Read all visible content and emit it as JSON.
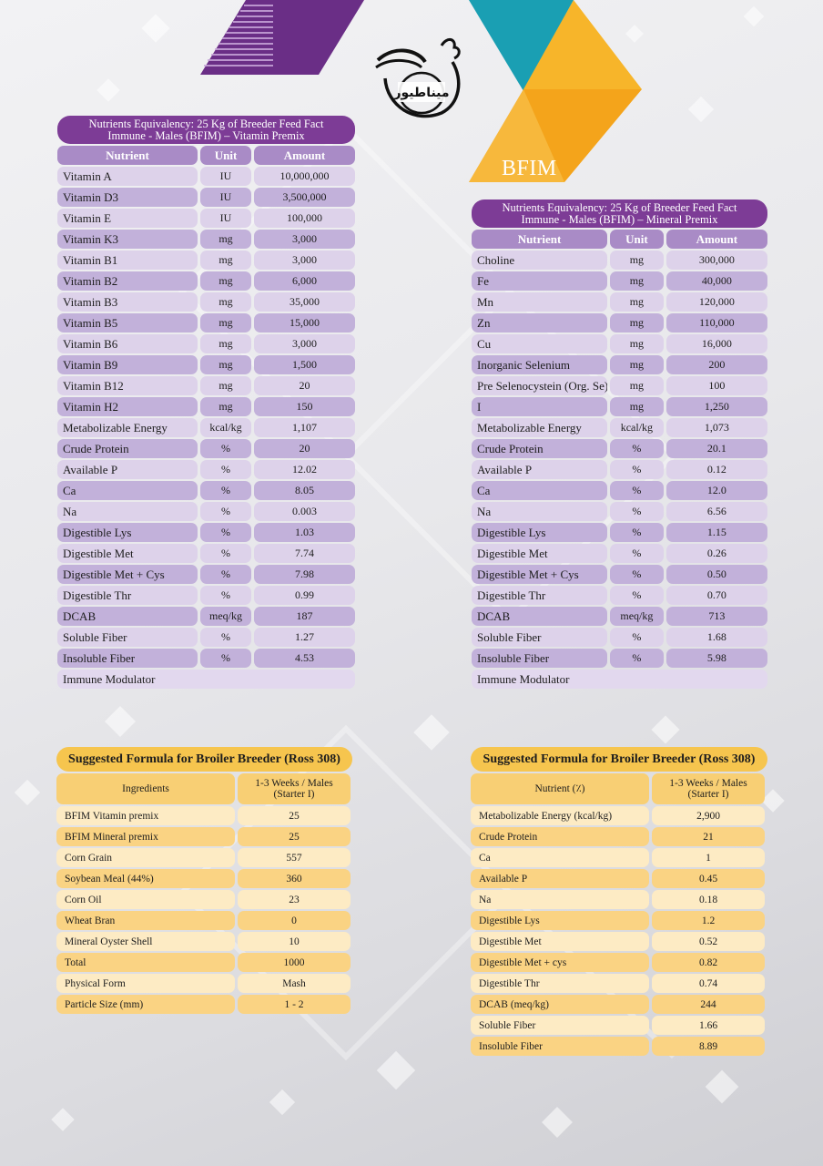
{
  "brand": {
    "label": "BFIM",
    "logo_text": "میناطیور"
  },
  "vitamin_premix": {
    "title_line1": "Nutrients Equivalency: 25 Kg of Breeder Feed Fact",
    "title_line2": "Immune - Males (BFIM) – Vitamin Premix",
    "headers": [
      "Nutrient",
      "Unit",
      "Amount"
    ],
    "rows": [
      [
        "Vitamin A",
        "IU",
        "10,000,000"
      ],
      [
        "Vitamin D3",
        "IU",
        "3,500,000"
      ],
      [
        "Vitamin E",
        "IU",
        "100,000"
      ],
      [
        "Vitamin K3",
        "mg",
        "3,000"
      ],
      [
        "Vitamin B1",
        "mg",
        "3,000"
      ],
      [
        "Vitamin B2",
        "mg",
        "6,000"
      ],
      [
        "Vitamin B3",
        "mg",
        "35,000"
      ],
      [
        "Vitamin B5",
        "mg",
        "15,000"
      ],
      [
        "Vitamin B6",
        "mg",
        "3,000"
      ],
      [
        "Vitamin B9",
        "mg",
        "1,500"
      ],
      [
        "Vitamin B12",
        "mg",
        "20"
      ],
      [
        "Vitamin H2",
        "mg",
        "150"
      ],
      [
        "Metabolizable Energy",
        "kcal/kg",
        "1,107"
      ],
      [
        "Crude Protein",
        "%",
        "20"
      ],
      [
        "Available P",
        "%",
        "12.02"
      ],
      [
        "Ca",
        "%",
        "8.05"
      ],
      [
        "Na",
        "%",
        "0.003"
      ],
      [
        "Digestible Lys",
        "%",
        "1.03"
      ],
      [
        "Digestible Met",
        "%",
        "7.74"
      ],
      [
        "Digestible Met + Cys",
        "%",
        "7.98"
      ],
      [
        "Digestible Thr",
        "%",
        "0.99"
      ],
      [
        "DCAB",
        "meq/kg",
        "187"
      ],
      [
        "Soluble Fiber",
        "%",
        "1.27"
      ],
      [
        "Insoluble Fiber",
        "%",
        "4.53"
      ]
    ],
    "footer": "Immune Modulator"
  },
  "mineral_premix": {
    "title_line1": "Nutrients Equivalency: 25 Kg of Breeder Feed Fact",
    "title_line2": "Immune - Males (BFIM) – Mineral Premix",
    "headers": [
      "Nutrient",
      "Unit",
      "Amount"
    ],
    "rows": [
      [
        "Choline",
        "mg",
        "300,000"
      ],
      [
        "Fe",
        "mg",
        "40,000"
      ],
      [
        "Mn",
        "mg",
        "120,000"
      ],
      [
        "Zn",
        "mg",
        "110,000"
      ],
      [
        "Cu",
        "mg",
        "16,000"
      ],
      [
        "Inorganic Selenium",
        "mg",
        "200"
      ],
      [
        "Pre Selenocystein (Org. Se)",
        "mg",
        "100"
      ],
      [
        "I",
        "mg",
        "1,250"
      ],
      [
        "Metabolizable Energy",
        "kcal/kg",
        "1,073"
      ],
      [
        "Crude Protein",
        "%",
        "20.1"
      ],
      [
        "Available P",
        "%",
        "0.12"
      ],
      [
        "Ca",
        "%",
        "12.0"
      ],
      [
        "Na",
        "%",
        "6.56"
      ],
      [
        "Digestible Lys",
        "%",
        "1.15"
      ],
      [
        "Digestible Met",
        "%",
        "0.26"
      ],
      [
        "Digestible Met + Cys",
        "%",
        "0.50"
      ],
      [
        "Digestible Thr",
        "%",
        "0.70"
      ],
      [
        "DCAB",
        "meq/kg",
        "713"
      ],
      [
        "Soluble Fiber",
        "%",
        "1.68"
      ],
      [
        "Insoluble Fiber",
        "%",
        "5.98"
      ]
    ],
    "footer": "Immune Modulator"
  },
  "formula_ingredients": {
    "title": "Suggested Formula for Broiler Breeder (Ross 308)",
    "headers": [
      "Ingredients",
      "1-3 Weeks / Males (Starter I)"
    ],
    "rows": [
      [
        "BFIM Vitamin premix",
        "25"
      ],
      [
        "BFIM Mineral premix",
        "25"
      ],
      [
        "Corn Grain",
        "557"
      ],
      [
        "Soybean Meal (44%)",
        "360"
      ],
      [
        "Corn Oil",
        "23"
      ],
      [
        "Wheat Bran",
        "0"
      ],
      [
        "Mineral Oyster Shell",
        "10"
      ],
      [
        "Total",
        "1000"
      ],
      [
        "Physical Form",
        "Mash"
      ],
      [
        "Particle Size (mm)",
        "1 - 2"
      ]
    ]
  },
  "formula_nutrients": {
    "title": "Suggested Formula for Broiler Breeder (Ross 308)",
    "headers": [
      "Nutrient (٪)",
      "1-3 Weeks / Males (Starter I)"
    ],
    "rows": [
      [
        "Metabolizable Energy (kcal/kg)",
        "2,900"
      ],
      [
        "Crude Protein",
        "21"
      ],
      [
        "Ca",
        "1"
      ],
      [
        "Available P",
        "0.45"
      ],
      [
        "Na",
        "0.18"
      ],
      [
        "Digestible Lys",
        "1.2"
      ],
      [
        "Digestible Met",
        "0.52"
      ],
      [
        "Digestible Met + cys",
        "0.82"
      ],
      [
        "Digestible Thr",
        "0.74"
      ],
      [
        "DCAB (meq/kg)",
        "244"
      ],
      [
        "Soluble Fiber",
        "1.66"
      ],
      [
        "Insoluble Fiber",
        "8.89"
      ]
    ]
  },
  "colors": {
    "purple": "#7d3c96",
    "orange": "#f6a81c",
    "teal": "#1a9fb3"
  }
}
